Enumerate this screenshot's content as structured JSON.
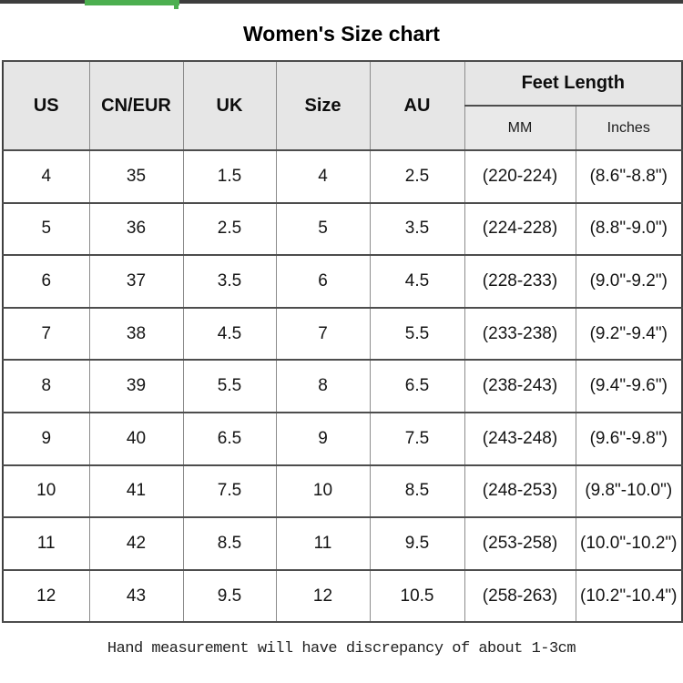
{
  "page": {
    "title": "Women's Size chart",
    "footer_note": "Hand measurement will have discrepancy of about 1-3cm"
  },
  "topbar": {
    "line_color": "#3d3d3d",
    "progress_color": "#4caf50"
  },
  "table": {
    "columns": [
      "US",
      "CN/EUR",
      "UK",
      "Size",
      "AU"
    ],
    "feet_length": {
      "label": "Feet Length",
      "sub_columns": [
        "MM",
        "Inches"
      ]
    },
    "rows": [
      [
        "4",
        "35",
        "1.5",
        "4",
        "2.5",
        "(220-224)",
        "(8.6\"-8.8\")"
      ],
      [
        "5",
        "36",
        "2.5",
        "5",
        "3.5",
        "(224-228)",
        "(8.8\"-9.0\")"
      ],
      [
        "6",
        "37",
        "3.5",
        "6",
        "4.5",
        "(228-233)",
        "(9.0\"-9.2\")"
      ],
      [
        "7",
        "38",
        "4.5",
        "7",
        "5.5",
        "(233-238)",
        "(9.2\"-9.4\")"
      ],
      [
        "8",
        "39",
        "5.5",
        "8",
        "6.5",
        "(238-243)",
        "(9.4\"-9.6\")"
      ],
      [
        "9",
        "40",
        "6.5",
        "9",
        "7.5",
        "(243-248)",
        "(9.6\"-9.8\")"
      ],
      [
        "10",
        "41",
        "7.5",
        "10",
        "8.5",
        "(248-253)",
        "(9.8\"-10.0\")"
      ],
      [
        "11",
        "42",
        "8.5",
        "11",
        "9.5",
        "(253-258)",
        "(10.0\"-10.2\")"
      ],
      [
        "12",
        "43",
        "9.5",
        "12",
        "10.5",
        "(258-263)",
        "(10.2\"-10.4\")"
      ]
    ]
  }
}
